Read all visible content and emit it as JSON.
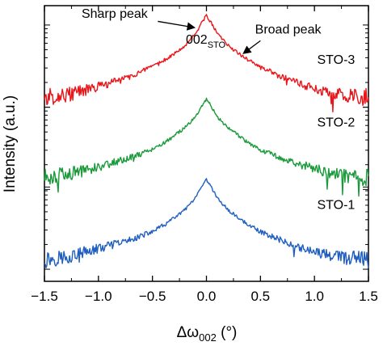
{
  "chart_data": {
    "type": "line",
    "xlabel_prefix": "Δω",
    "xlabel_sub": "002",
    "xlabel_suffix": " (°)",
    "ylabel": "Intensity (a.u.)",
    "xlim": [
      -1.5,
      1.5
    ],
    "ylim": [
      0,
      11.4
    ],
    "xticks": [
      -1.5,
      -1.0,
      -0.5,
      0.0,
      0.5,
      1.0,
      1.5
    ],
    "xtick_labels": [
      "−1.5",
      "−1.0",
      "−0.5",
      "0.0",
      "0.5",
      "1.0",
      "1.5"
    ],
    "y_log_decades": [
      0.5,
      3.8,
      7.2
    ],
    "series": [
      {
        "name": "STO-1",
        "color": "#1f5fbf",
        "x": [
          -1.5,
          -1.25,
          -1.0,
          -0.75,
          -0.5,
          -0.35,
          -0.2,
          -0.1,
          -0.05,
          0.0,
          0.05,
          0.1,
          0.2,
          0.35,
          0.5,
          0.75,
          1.0,
          1.25,
          1.5
        ],
        "y": [
          0.9,
          1.05,
          1.35,
          1.65,
          2.05,
          2.45,
          2.95,
          3.45,
          3.85,
          4.2,
          3.85,
          3.45,
          2.95,
          2.45,
          2.05,
          1.6,
          1.2,
          1.0,
          0.85
        ]
      },
      {
        "name": "STO-2",
        "color": "#1a9a3a",
        "x": [
          -1.5,
          -1.25,
          -1.0,
          -0.75,
          -0.5,
          -0.35,
          -0.2,
          -0.1,
          -0.05,
          0.0,
          0.05,
          0.1,
          0.2,
          0.35,
          0.5,
          0.75,
          1.0,
          1.25,
          1.5
        ],
        "y": [
          4.3,
          4.45,
          4.75,
          5.05,
          5.45,
          5.85,
          6.35,
          6.8,
          7.2,
          7.55,
          7.2,
          6.8,
          6.35,
          5.85,
          5.45,
          5.0,
          4.65,
          4.4,
          4.3
        ]
      },
      {
        "name": "STO-3",
        "color": "#e8161b",
        "x": [
          -1.5,
          -1.25,
          -1.0,
          -0.75,
          -0.5,
          -0.35,
          -0.2,
          -0.1,
          -0.05,
          0.0,
          0.05,
          0.1,
          0.2,
          0.35,
          0.5,
          0.75,
          1.0,
          1.25,
          1.5
        ],
        "y": [
          7.6,
          7.75,
          8.05,
          8.4,
          8.85,
          9.25,
          9.75,
          10.25,
          10.65,
          11.0,
          10.65,
          10.25,
          9.75,
          9.25,
          8.85,
          8.35,
          7.95,
          7.7,
          7.6
        ]
      }
    ],
    "series_labels": [
      {
        "text": "STO-3",
        "x": 1.2,
        "y": 9.0
      },
      {
        "text": "STO-2",
        "x": 1.2,
        "y": 6.4
      },
      {
        "text": "STO-1",
        "x": 1.2,
        "y": 3.0
      }
    ],
    "annotations": [
      {
        "text": "Sharp peak",
        "x": -0.85,
        "y": 10.9
      },
      {
        "text": "Broad peak",
        "x": 0.45,
        "y": 10.25
      }
    ],
    "peak_label_main": "002",
    "peak_label_sub": "STO"
  }
}
